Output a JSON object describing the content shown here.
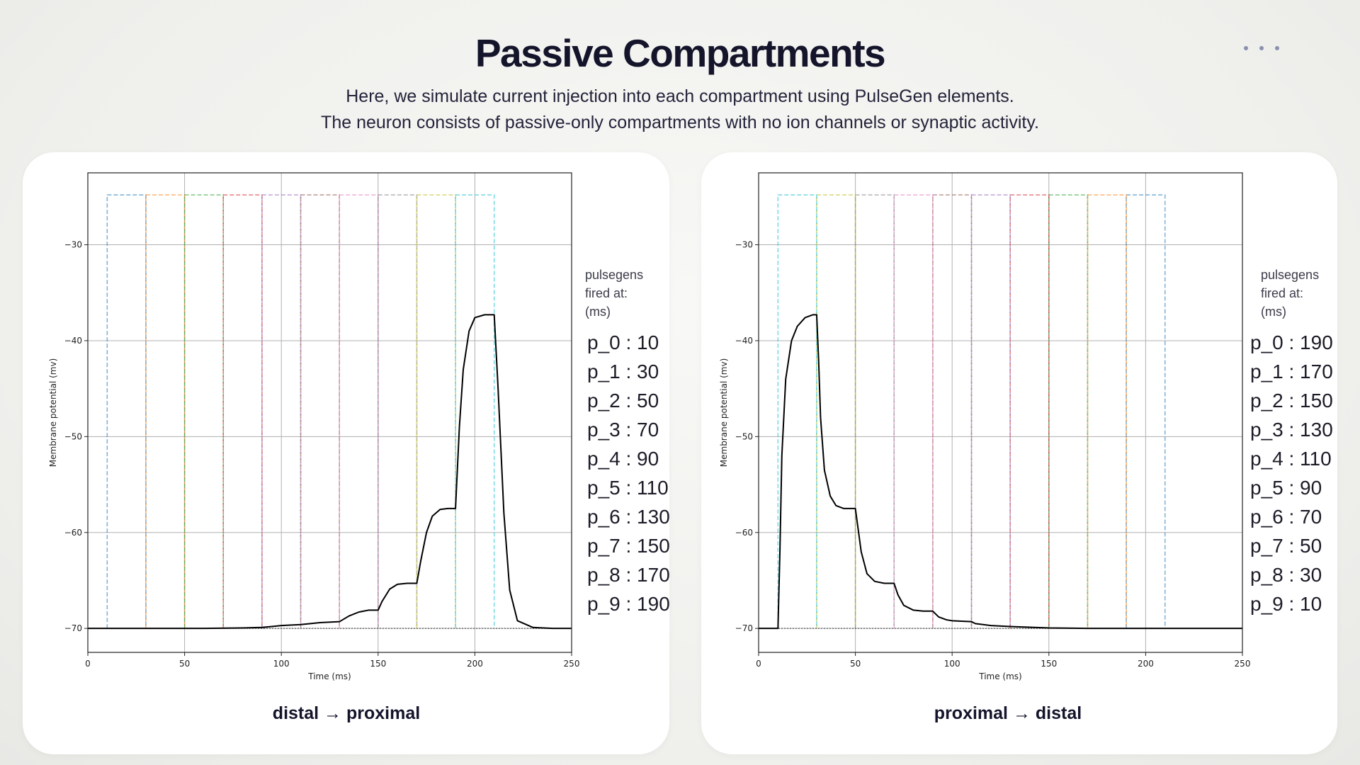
{
  "header": {
    "title": "Passive Compartments",
    "subtitle_line1": "Here, we simulate current injection into each compartment using PulseGen elements.",
    "subtitle_line2": "The neuron consists of passive-only compartments with no ion channels or synaptic activity.",
    "menu_icon": "more-dots-icon"
  },
  "colors": {
    "pulses": [
      "#1f77b4",
      "#ff7f0e",
      "#2ca02c",
      "#d62728",
      "#9467bd",
      "#8c564b",
      "#e377c2",
      "#7f7f7f",
      "#bcbd22",
      "#17becf"
    ],
    "trace": "#000000",
    "grid": "#b0b0b0"
  },
  "chart_data": [
    {
      "type": "line",
      "caption": "distal → proximal",
      "xlabel": "Time (ms)",
      "ylabel": "Membrane potential (mv)",
      "xlim": [
        0,
        250
      ],
      "ylim": [
        -72.5,
        -22.5
      ],
      "xticks": [
        0,
        50,
        100,
        150,
        200,
        250
      ],
      "yticks": [
        -30,
        -40,
        -50,
        -60,
        -70
      ],
      "grid": true,
      "legend_placement": "right",
      "legend_title": [
        "pulsegens",
        "fired at:",
        "(ms)"
      ],
      "pulses": [
        {
          "name": "p_0",
          "onset": 10
        },
        {
          "name": "p_1",
          "onset": 30
        },
        {
          "name": "p_2",
          "onset": 50
        },
        {
          "name": "p_3",
          "onset": 70
        },
        {
          "name": "p_4",
          "onset": 90
        },
        {
          "name": "p_5",
          "onset": 110
        },
        {
          "name": "p_6",
          "onset": 130
        },
        {
          "name": "p_7",
          "onset": 150
        },
        {
          "name": "p_8",
          "onset": 170
        },
        {
          "name": "p_9",
          "onset": 190
        }
      ],
      "pulse_duration_ms": 20,
      "pulse_level": -24.8,
      "trace": {
        "x": [
          0,
          60,
          80,
          90,
          100,
          110,
          120,
          130,
          135,
          140,
          145,
          150,
          152,
          156,
          160,
          165,
          170,
          172,
          175,
          178,
          182,
          186,
          190,
          192,
          194,
          197,
          200,
          205,
          210,
          212,
          215,
          218,
          222,
          230,
          240,
          250
        ],
        "y": [
          -70,
          -70,
          -69.95,
          -69.9,
          -69.7,
          -69.6,
          -69.4,
          -69.3,
          -68.7,
          -68.3,
          -68.1,
          -68.1,
          -67.2,
          -65.9,
          -65.4,
          -65.3,
          -65.3,
          -63,
          -60,
          -58.3,
          -57.6,
          -57.5,
          -57.5,
          -49,
          -43,
          -39,
          -37.6,
          -37.3,
          -37.3,
          -45,
          -58,
          -66,
          -69.2,
          -69.9,
          -70,
          -70
        ]
      }
    },
    {
      "type": "line",
      "caption": "proximal → distal",
      "xlabel": "Time (ms)",
      "ylabel": "Membrane potential (mv)",
      "xlim": [
        0,
        250
      ],
      "ylim": [
        -72.5,
        -22.5
      ],
      "xticks": [
        0,
        50,
        100,
        150,
        200,
        250
      ],
      "yticks": [
        -30,
        -40,
        -50,
        -60,
        -70
      ],
      "grid": true,
      "legend_placement": "right",
      "legend_title": [
        "pulsegens",
        "fired at:",
        "(ms)"
      ],
      "pulses": [
        {
          "name": "p_0",
          "onset": 190
        },
        {
          "name": "p_1",
          "onset": 170
        },
        {
          "name": "p_2",
          "onset": 150
        },
        {
          "name": "p_3",
          "onset": 130
        },
        {
          "name": "p_4",
          "onset": 110
        },
        {
          "name": "p_5",
          "onset": 90
        },
        {
          "name": "p_6",
          "onset": 70
        },
        {
          "name": "p_7",
          "onset": 50
        },
        {
          "name": "p_8",
          "onset": 30
        },
        {
          "name": "p_9",
          "onset": 10
        }
      ],
      "pulse_duration_ms": 20,
      "pulse_level": -24.8,
      "trace": {
        "x": [
          0,
          10,
          11,
          12,
          14,
          17,
          20,
          24,
          28,
          30,
          31,
          32,
          34,
          37,
          40,
          44,
          48,
          50,
          51,
          53,
          56,
          60,
          65,
          70,
          72,
          75,
          80,
          85,
          90,
          93,
          97,
          100,
          110,
          112,
          120,
          130,
          150,
          170,
          250
        ],
        "y": [
          -70,
          -70,
          -62,
          -52,
          -44,
          -40,
          -38.5,
          -37.6,
          -37.3,
          -37.3,
          -42,
          -48,
          -53.5,
          -56.2,
          -57.2,
          -57.5,
          -57.5,
          -57.5,
          -59,
          -62,
          -64.3,
          -65.1,
          -65.3,
          -65.3,
          -66.5,
          -67.6,
          -68.1,
          -68.2,
          -68.2,
          -68.8,
          -69.1,
          -69.2,
          -69.3,
          -69.5,
          -69.7,
          -69.8,
          -69.95,
          -70,
          -70
        ]
      }
    }
  ]
}
